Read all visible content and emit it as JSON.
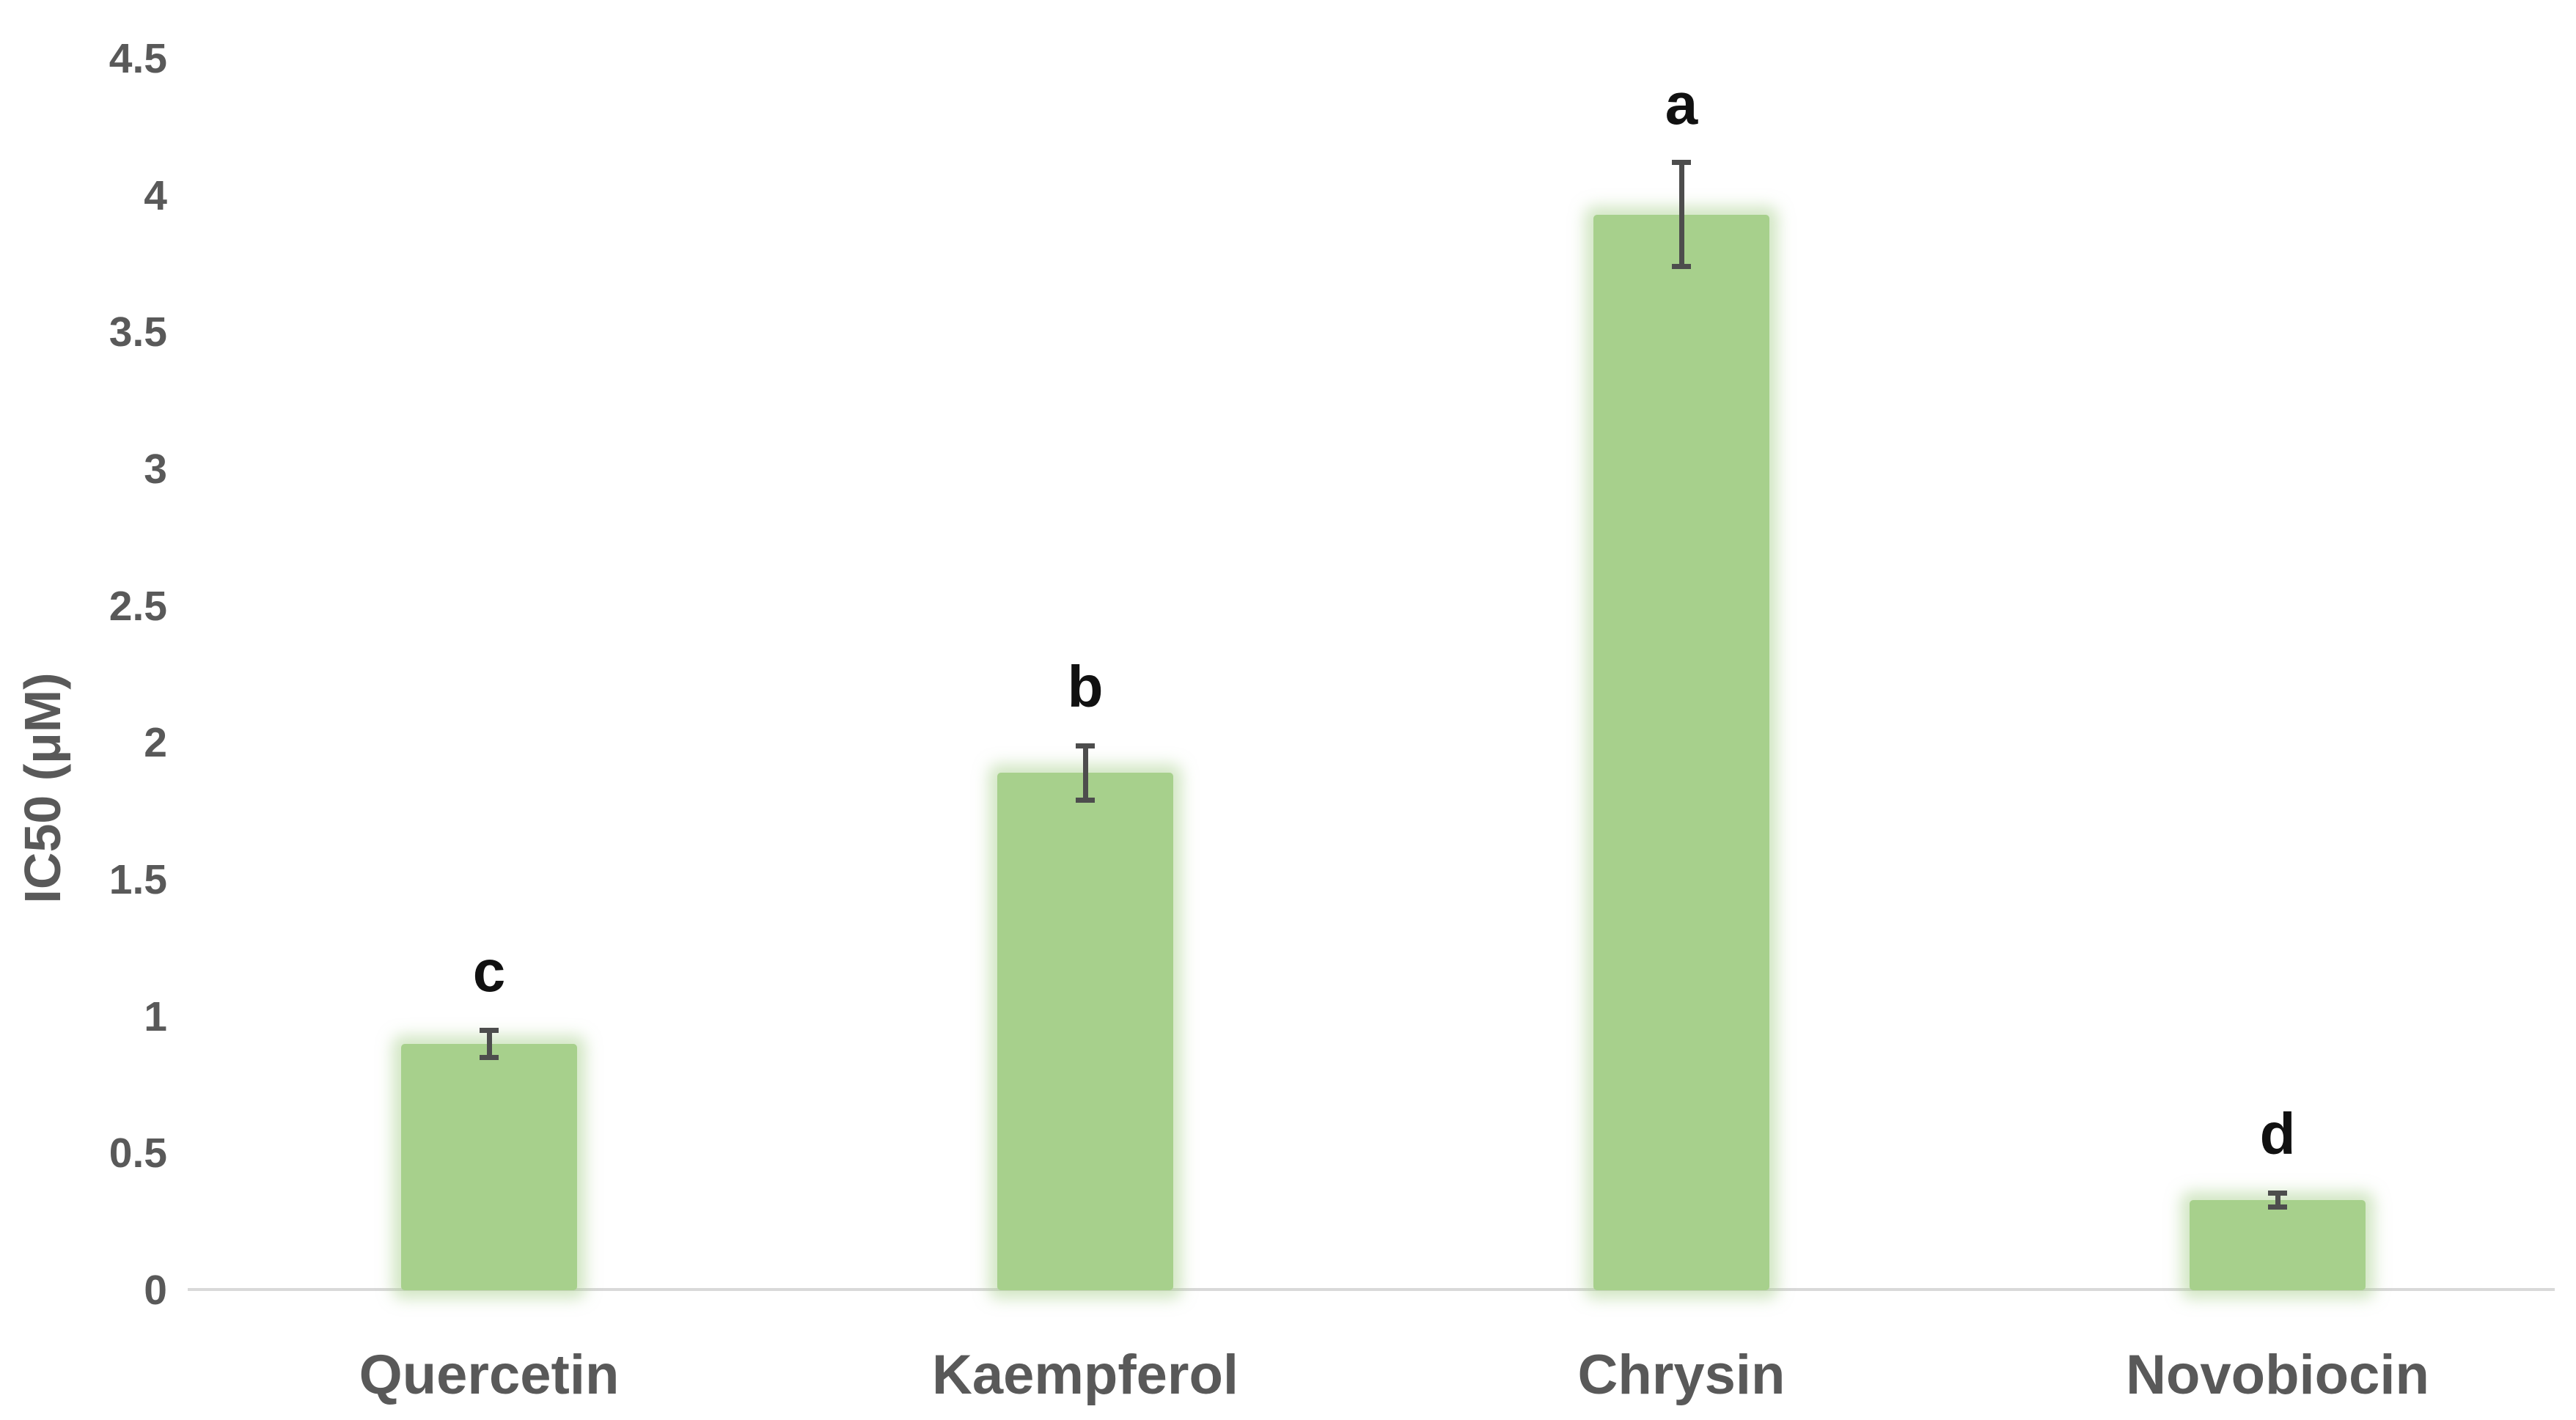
{
  "chart_data": {
    "type": "bar",
    "title": "",
    "xlabel": "",
    "ylabel": "IC50 (μM)",
    "categories": [
      "Quercetin",
      "Kaempferol",
      "Chrysin",
      "Novobiocin"
    ],
    "series": [
      {
        "name": "IC50",
        "values": [
          0.9,
          1.89,
          3.93,
          0.33
        ],
        "error_bars_plus_minus": [
          0.05,
          0.1,
          0.19,
          0.025
        ],
        "significance_letters": [
          "c",
          "b",
          "a",
          "d"
        ]
      }
    ],
    "ylim": [
      0,
      4.5
    ],
    "ytick_step": 0.5,
    "ytick_labels": [
      "0",
      "0.5",
      "1",
      "1.5",
      "2",
      "2.5",
      "3",
      "3.5",
      "4",
      "4.5"
    ],
    "grid": false,
    "legend": false,
    "colors": {
      "bar_fill": "#a7d08c",
      "bar_glow": "rgba(167,208,140,0.5)",
      "error_bar": "#4d4d4d",
      "axis_line": "#d9d9d9",
      "axis_text": "#595959",
      "letter_text": "#111111",
      "background": "#ffffff"
    }
  }
}
